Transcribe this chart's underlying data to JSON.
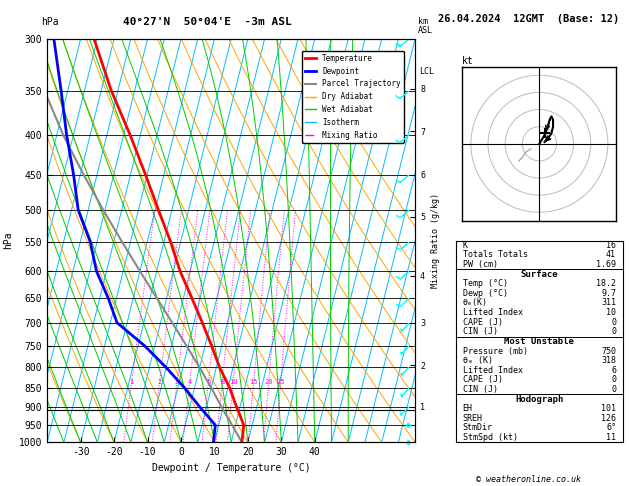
{
  "title_left": "40°27'N  50°04'E  -3m ASL",
  "title_right": "26.04.2024  12GMT  (Base: 12)",
  "xlabel": "Dewpoint / Temperature (°C)",
  "ylabel_left": "hPa",
  "pressure_levels": [
    300,
    350,
    400,
    450,
    500,
    550,
    600,
    650,
    700,
    750,
    800,
    850,
    900,
    950,
    1000
  ],
  "temp_ticks": [
    -30,
    -20,
    -10,
    0,
    10,
    20,
    30,
    40
  ],
  "tmin": -40,
  "tmax": 40,
  "pmin": 300,
  "pmax": 1000,
  "isotherm_color": "#00bfff",
  "dry_adiabat_color": "#ffa500",
  "wet_adiabat_color": "#00cc00",
  "mixing_ratio_color": "#ff00ff",
  "temp_color": "#ff0000",
  "dewp_color": "#0000ff",
  "parcel_color": "#888888",
  "legend_items": [
    {
      "label": "Temperature",
      "color": "#ff0000",
      "lw": 2.0,
      "ls": "-"
    },
    {
      "label": "Dewpoint",
      "color": "#0000ff",
      "lw": 2.0,
      "ls": "-"
    },
    {
      "label": "Parcel Trajectory",
      "color": "#888888",
      "lw": 1.5,
      "ls": "-"
    },
    {
      "label": "Dry Adiabat",
      "color": "#ffa500",
      "lw": 1.0,
      "ls": "-"
    },
    {
      "label": "Wet Adiabat",
      "color": "#00cc00",
      "lw": 1.0,
      "ls": "-"
    },
    {
      "label": "Isotherm",
      "color": "#00bfff",
      "lw": 1.0,
      "ls": "-"
    },
    {
      "label": "Mixing Ratio",
      "color": "#ff00ff",
      "lw": 1.0,
      "ls": "-."
    }
  ],
  "temperature_profile": {
    "pressure": [
      1000,
      950,
      900,
      850,
      800,
      750,
      700,
      650,
      600,
      550,
      500,
      450,
      400,
      350,
      300
    ],
    "temp": [
      18.2,
      17.5,
      14.0,
      10.5,
      6.0,
      2.0,
      -2.5,
      -7.5,
      -13.0,
      -18.0,
      -24.0,
      -30.5,
      -38.0,
      -47.0,
      -56.0
    ]
  },
  "dewpoint_profile": {
    "pressure": [
      1000,
      950,
      900,
      850,
      800,
      750,
      700,
      650,
      600,
      550,
      500,
      450,
      400,
      350,
      300
    ],
    "temp": [
      9.7,
      9.0,
      3.0,
      -3.0,
      -10.0,
      -18.0,
      -28.0,
      -32.5,
      -38.0,
      -42.0,
      -48.0,
      -52.0,
      -57.0,
      -62.0,
      -68.0
    ]
  },
  "parcel_profile": {
    "pressure": [
      1000,
      950,
      900,
      850,
      800,
      750,
      700,
      650,
      600,
      550,
      500,
      450,
      400,
      350,
      300
    ],
    "temp": [
      18.2,
      14.0,
      9.5,
      5.0,
      0.0,
      -5.5,
      -11.5,
      -18.0,
      -25.0,
      -32.5,
      -40.5,
      -49.0,
      -58.0,
      -67.0,
      -77.0
    ]
  },
  "mixing_ratios": [
    1,
    2,
    3,
    4,
    6,
    8,
    10,
    15,
    20,
    25
  ],
  "km_ticks": [
    1,
    2,
    3,
    4,
    5,
    6,
    7,
    8
  ],
  "km_pressures": [
    900,
    795,
    700,
    608,
    510,
    450,
    395,
    348
  ],
  "LCL_pressure": 907,
  "hodo_u": [
    0,
    3,
    5,
    6,
    7,
    8,
    8,
    7,
    5,
    3
  ],
  "hodo_v": [
    0,
    5,
    10,
    14,
    16,
    14,
    10,
    6,
    3,
    1
  ],
  "hodo_gray_u": [
    -5,
    -8,
    -10,
    -12
  ],
  "hodo_gray_v": [
    -3,
    -5,
    -8,
    -10
  ],
  "storm_motion_u": 3,
  "storm_motion_v": 6,
  "info_K": 16,
  "info_TT": 41,
  "info_PW": "1.69",
  "info_sfc_temp": "18.2",
  "info_sfc_dewp": "9.7",
  "info_sfc_thetae": 311,
  "info_sfc_li": 10,
  "info_sfc_cape": 0,
  "info_sfc_cin": 0,
  "info_mu_pres": 750,
  "info_mu_thetae": 318,
  "info_mu_li": 6,
  "info_mu_cape": 0,
  "info_mu_cin": 0,
  "info_eh": 101,
  "info_sreh": 126,
  "info_stmdir": "6°",
  "info_stmspd": 11,
  "wind_barb_pressures": [
    1000,
    950,
    900,
    850,
    800,
    750,
    700,
    650,
    600,
    550,
    500,
    450,
    400,
    350,
    300
  ],
  "wind_barb_u": [
    2,
    3,
    4,
    5,
    7,
    9,
    10,
    12,
    14,
    15,
    16,
    17,
    18,
    19,
    20
  ],
  "wind_barb_v": [
    1,
    2,
    4,
    6,
    8,
    10,
    11,
    12,
    13,
    13,
    14,
    14,
    15,
    15,
    16
  ]
}
